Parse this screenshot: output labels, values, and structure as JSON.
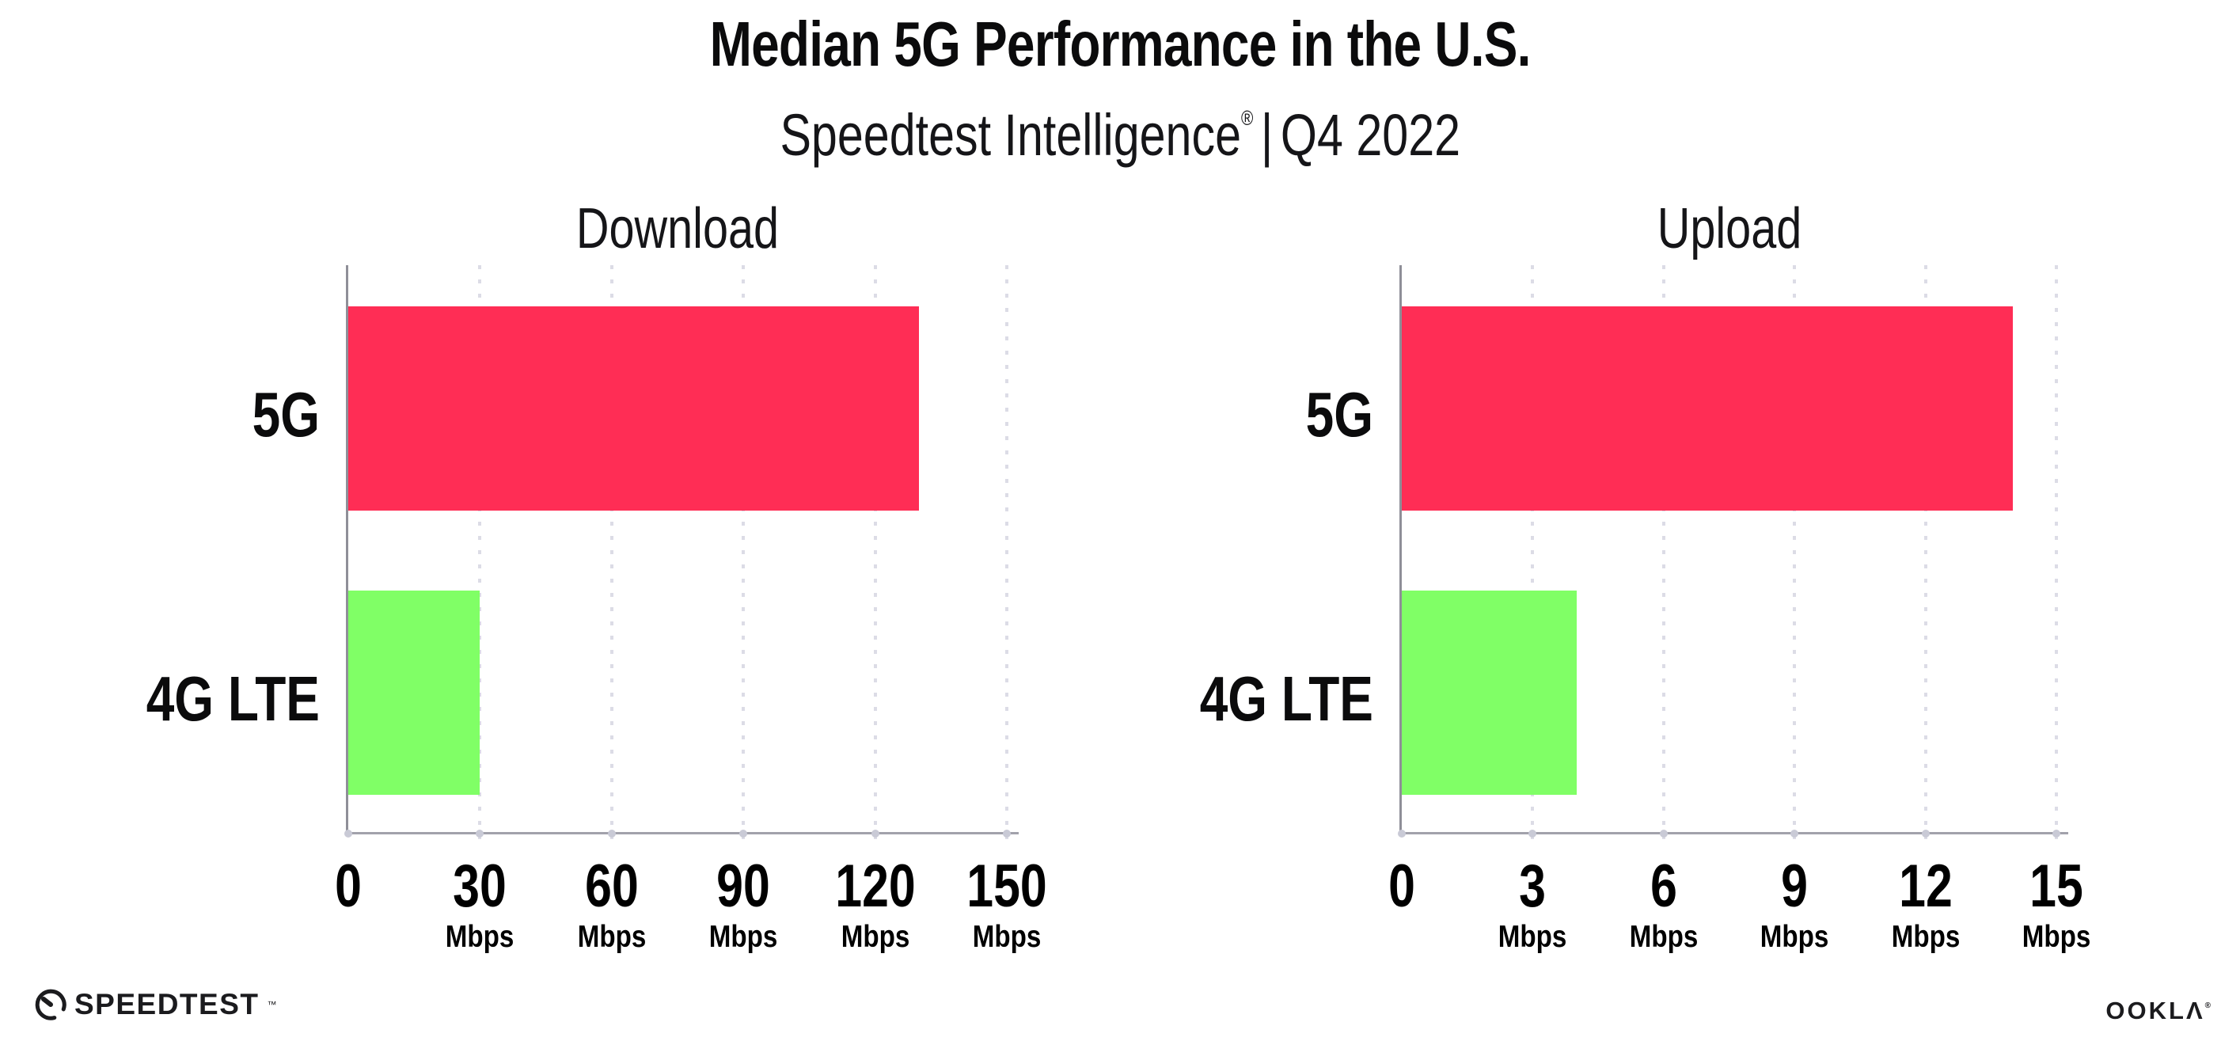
{
  "header": {
    "title": "Median 5G Performance in the U.S.",
    "subtitle_brand": "Speedtest Intelligence",
    "subtitle_reg": "®",
    "subtitle_sep": "|",
    "subtitle_period": "Q4 2022"
  },
  "chart_data": [
    {
      "type": "bar",
      "orientation": "horizontal",
      "title": "Download",
      "categories": [
        "5G",
        "4G LTE"
      ],
      "values": [
        130,
        30
      ],
      "unit": "Mbps",
      "xlim": [
        0,
        150
      ],
      "xticks": [
        0,
        30,
        60,
        90,
        120,
        150
      ],
      "bar_colors": [
        "#FF2D55",
        "#80FF66"
      ],
      "grid": "vertical-dotted",
      "legend": "none"
    },
    {
      "type": "bar",
      "orientation": "horizontal",
      "title": "Upload",
      "categories": [
        "5G",
        "4G LTE"
      ],
      "values": [
        14,
        4
      ],
      "unit": "Mbps",
      "xlim": [
        0,
        15
      ],
      "xticks": [
        0,
        3,
        6,
        9,
        12,
        15
      ],
      "bar_colors": [
        "#FF2D55",
        "#80FF66"
      ],
      "grid": "vertical-dotted",
      "legend": "none"
    }
  ],
  "colors": {
    "bar_5g": "#FF2D55",
    "bar_4g_lte": "#80FF66",
    "axis": "#9b9ba5",
    "gridline": "#dcdce6",
    "text": "#111111"
  },
  "footer": {
    "speedtest_logo_text": "SPEEDTEST",
    "speedtest_mark": "™",
    "ookla_logo_text": "OOKLΛ",
    "ookla_mark": "®"
  }
}
